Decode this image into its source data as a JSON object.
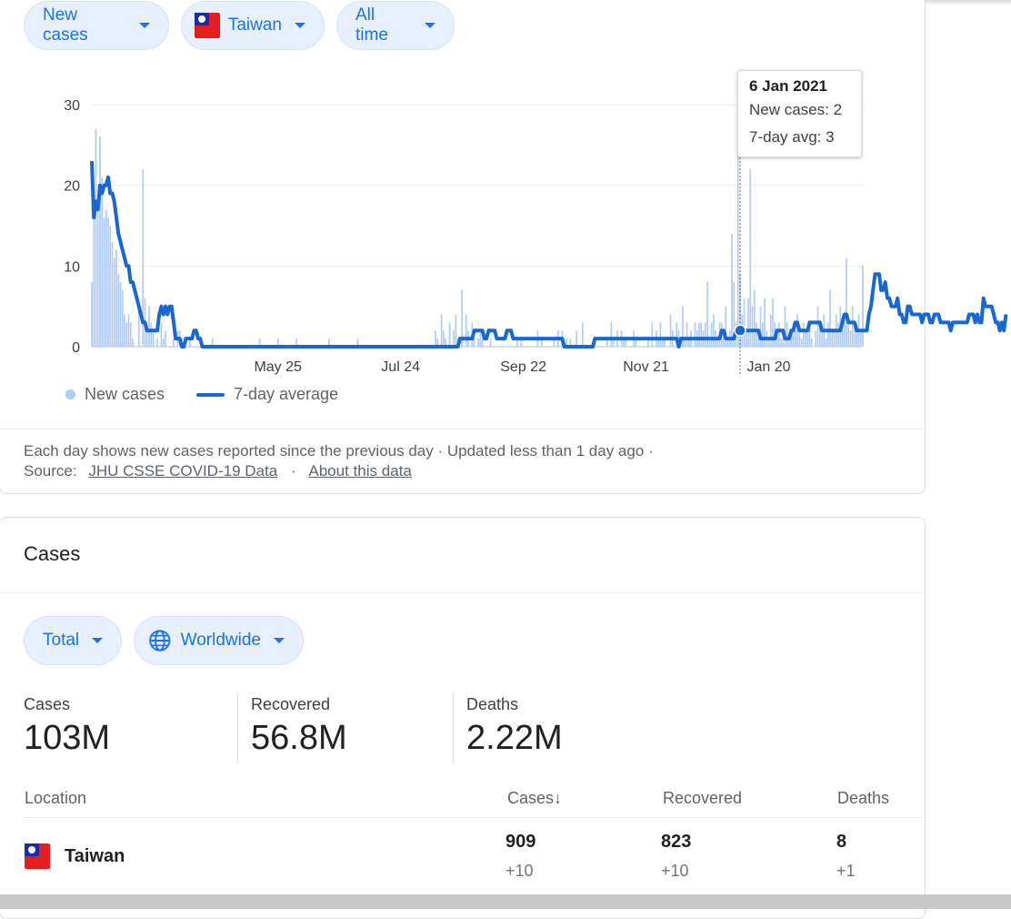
{
  "filters": {
    "metric": "New cases",
    "country": "Taiwan",
    "range": "All time"
  },
  "chart_data": {
    "type": "bar",
    "title": "",
    "ylim": [
      0,
      30
    ],
    "y_ticks": [
      "0",
      "10",
      "20",
      "30"
    ],
    "x_tick_labels": [
      "May 25",
      "Jul 24",
      "Sep 22",
      "Nov 21",
      "Jan 20"
    ],
    "series": [
      {
        "name": "New cases",
        "kind": "bar",
        "values": [
          8,
          16,
          27,
          17,
          26,
          21,
          16,
          17,
          16,
          15,
          13,
          11,
          12,
          9,
          8,
          7,
          4,
          3,
          4,
          3,
          1,
          0,
          0,
          5,
          0,
          22,
          6,
          2,
          5,
          3,
          2,
          0,
          1,
          0,
          3,
          1,
          2,
          0,
          0,
          0,
          1,
          0,
          2,
          2,
          1,
          0,
          0,
          0,
          1,
          0,
          0,
          0,
          0,
          0,
          0,
          0,
          0,
          0,
          0,
          1,
          0,
          0,
          0,
          0,
          0,
          0,
          0,
          0,
          0,
          0,
          0,
          0,
          0,
          0,
          0,
          0,
          0,
          0,
          0,
          0,
          0,
          0,
          1,
          0,
          0,
          0,
          0,
          0,
          0,
          0,
          0,
          1,
          0,
          0,
          0,
          0,
          0,
          0,
          0,
          0,
          1,
          0,
          0,
          0,
          0,
          0,
          0,
          0,
          0,
          0,
          0,
          0,
          0,
          0,
          0,
          0,
          1,
          0,
          0,
          0,
          0,
          0,
          0,
          0,
          0,
          0,
          0,
          0,
          0,
          0,
          1,
          0,
          0,
          0,
          0,
          0,
          0,
          0,
          0,
          0,
          0,
          0,
          0,
          0,
          0,
          0,
          0,
          0,
          0,
          0,
          0,
          0,
          0,
          0,
          0,
          0,
          0,
          0,
          0,
          0,
          0,
          0,
          0,
          0,
          0,
          0,
          0,
          0,
          2,
          1,
          0,
          4,
          2,
          1,
          0,
          3,
          0,
          2,
          4,
          1,
          0,
          7,
          0,
          4,
          2,
          0,
          3,
          1,
          0,
          1,
          2,
          1,
          0,
          0,
          0,
          1,
          0,
          0,
          0,
          0,
          0,
          0,
          0,
          0,
          0,
          0,
          0,
          0,
          1,
          0,
          1,
          0,
          0,
          0,
          0,
          0,
          0,
          0,
          2,
          0,
          1,
          0,
          0,
          0,
          0,
          0,
          1,
          0,
          2,
          0,
          2,
          0,
          1,
          0,
          1,
          0,
          0,
          2,
          0,
          0,
          3,
          0,
          0,
          0,
          0,
          0,
          0,
          0,
          0,
          0,
          0,
          0,
          1,
          0,
          3,
          1,
          0,
          2,
          0,
          2,
          1,
          1,
          0,
          0,
          0,
          2,
          1,
          0,
          0,
          0,
          0,
          0,
          1,
          0,
          3,
          0,
          2,
          1,
          3,
          1,
          1,
          0,
          0,
          4,
          2,
          0,
          3,
          2,
          0,
          5,
          1,
          3,
          1,
          2,
          0,
          3,
          2,
          3,
          3,
          2,
          3,
          8,
          1,
          3,
          4,
          2,
          1,
          3,
          3,
          2,
          5,
          1,
          2,
          14,
          8,
          3,
          24,
          9,
          4,
          6,
          2,
          6,
          22,
          5,
          7,
          3,
          1,
          5,
          3,
          6,
          2,
          1,
          4,
          6,
          3,
          2,
          3,
          1,
          2,
          5,
          3,
          1,
          2,
          3,
          2,
          4,
          2,
          1,
          3,
          2,
          2,
          3,
          1,
          0,
          2,
          5,
          3,
          2,
          4,
          1,
          3,
          7,
          2,
          2,
          4,
          3,
          5,
          2,
          4,
          11,
          3,
          2,
          5,
          3,
          2,
          4,
          2,
          10
        ],
        "color": "#aecbfa"
      },
      {
        "name": "7-day average",
        "kind": "line",
        "values": [
          23,
          16,
          18,
          17,
          20,
          19,
          20,
          20,
          21,
          19,
          19,
          18,
          16,
          14,
          13,
          12,
          11,
          10,
          10,
          8,
          8,
          7,
          6,
          5,
          4,
          3,
          3,
          2,
          2,
          2,
          2,
          2,
          2,
          4,
          5,
          4,
          5,
          4,
          5,
          5,
          3,
          1,
          1,
          1,
          0,
          0,
          1,
          1,
          1,
          1,
          2,
          2,
          1,
          1,
          0,
          0,
          0,
          0,
          0,
          0,
          0,
          0,
          0,
          0,
          0,
          0,
          0,
          0,
          0,
          0,
          0,
          0,
          0,
          0,
          0,
          0,
          0,
          0,
          0,
          0,
          0,
          0,
          0,
          0,
          0,
          0,
          0,
          0,
          0,
          0,
          0,
          0,
          0,
          0,
          0,
          0,
          0,
          0,
          0,
          0,
          0,
          0,
          0,
          0,
          0,
          0,
          0,
          0,
          0,
          0,
          0,
          0,
          0,
          0,
          0,
          0,
          0,
          0,
          0,
          0,
          0,
          0,
          0,
          0,
          0,
          0,
          0,
          0,
          0,
          0,
          0,
          0,
          0,
          0,
          0,
          0,
          0,
          0,
          0,
          0,
          0,
          0,
          0,
          0,
          0,
          0,
          0,
          0,
          0,
          0,
          0,
          0,
          0,
          0,
          0,
          0,
          0,
          0,
          0,
          0,
          0,
          0,
          0,
          0,
          0,
          0,
          0,
          0,
          0,
          0,
          0,
          0,
          0,
          0,
          0,
          0,
          0,
          0,
          0,
          0,
          1,
          1,
          1,
          1,
          1,
          1,
          1,
          2,
          2,
          2,
          2,
          2,
          1,
          1,
          2,
          2,
          2,
          2,
          1,
          1,
          1,
          1,
          1,
          2,
          2,
          2,
          1,
          1,
          1,
          1,
          1,
          1,
          1,
          1,
          1,
          1,
          1,
          1,
          1,
          1,
          1,
          1,
          1,
          1,
          1,
          1,
          1,
          1,
          1,
          1,
          1,
          0,
          0,
          0,
          0,
          0,
          0,
          0,
          0,
          0,
          0,
          0,
          0,
          0,
          0,
          0,
          1,
          1,
          1,
          1,
          1,
          1,
          1,
          1,
          1,
          1,
          1,
          1,
          1,
          1,
          1,
          1,
          1,
          1,
          1,
          1,
          1,
          1,
          1,
          1,
          1,
          1,
          1,
          1,
          1,
          1,
          1,
          1,
          1,
          1,
          1,
          1,
          1,
          1,
          1,
          1,
          1,
          0,
          1,
          1,
          1,
          1,
          1,
          1,
          1,
          1,
          1,
          1,
          1,
          1,
          1,
          1,
          1,
          1,
          1,
          1,
          1,
          1,
          2,
          2,
          1,
          1,
          1,
          1,
          1,
          2,
          2,
          2,
          2,
          2,
          2,
          2,
          2,
          2,
          2,
          2,
          2,
          1,
          1,
          1,
          1,
          1,
          1,
          1,
          1,
          2,
          2,
          2,
          2,
          1,
          1,
          1,
          2,
          2,
          3,
          3,
          2,
          2,
          2,
          2,
          2,
          3,
          3,
          3,
          3,
          3,
          3,
          2,
          2,
          2,
          2,
          2,
          2,
          2,
          2,
          2,
          2,
          3,
          4,
          4,
          3,
          3,
          3,
          3,
          2,
          2,
          2,
          2,
          2,
          2,
          4,
          5,
          7,
          9,
          9,
          9,
          7,
          7,
          8,
          6,
          6,
          5,
          5,
          5,
          6,
          4,
          4,
          3,
          3,
          5,
          5,
          4,
          4,
          4,
          4,
          4,
          3,
          4,
          4,
          4,
          3,
          3,
          4,
          4,
          4,
          3,
          3,
          3,
          3,
          3,
          2,
          3,
          3,
          3,
          3,
          3,
          3,
          3,
          3,
          4,
          4,
          4,
          3,
          4,
          3,
          3,
          6,
          5,
          5,
          5,
          5,
          4,
          3,
          3,
          2,
          3,
          2,
          4
        ],
        "color": "#1967d2"
      }
    ],
    "legend_position": "bottom-left",
    "tooltip": {
      "date": "6 Jan 2021",
      "new_cases": "New cases: 2",
      "avg": "7-day avg: 3"
    }
  },
  "legend": {
    "bars": "New cases",
    "line": "7-day average"
  },
  "footer": {
    "line1": "Each day shows new cases reported since the previous day · Updated less than 1 day ago  ·",
    "source_label": "Source:",
    "source_link": "JHU CSSE COVID-19 Data",
    "sep": "·",
    "about_link": "About this data"
  },
  "cases_card": {
    "title": "Cases",
    "filter_total": "Total",
    "filter_region": "Worldwide",
    "stats": [
      {
        "label": "Cases",
        "value": "103M"
      },
      {
        "label": "Recovered",
        "value": "56.8M"
      },
      {
        "label": "Deaths",
        "value": "2.22M"
      }
    ],
    "table": {
      "headers": {
        "location": "Location",
        "cases": "Cases",
        "recovered": "Recovered",
        "deaths": "Deaths"
      },
      "sort_glyph": "↓",
      "rows": [
        {
          "location": "Taiwan",
          "cases": "909",
          "cases_delta": "+10",
          "recovered": "823",
          "recovered_delta": "+10",
          "deaths": "8",
          "deaths_delta": "+1"
        }
      ]
    }
  }
}
